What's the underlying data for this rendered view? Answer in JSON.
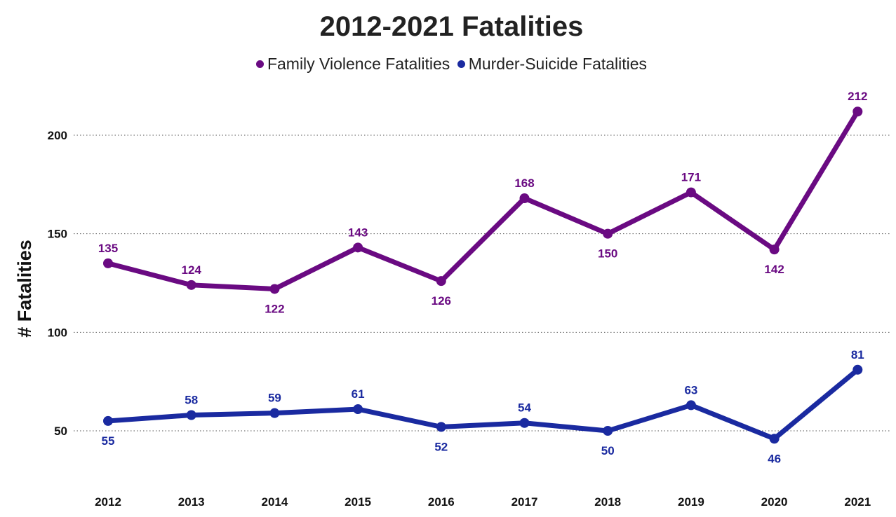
{
  "chart_data": {
    "type": "line",
    "title": "2012-2021 Fatalities",
    "xlabel": "",
    "ylabel": "# Fatalities",
    "x": [
      "2012",
      "2013",
      "2014",
      "2015",
      "2016",
      "2017",
      "2018",
      "2019",
      "2020",
      "2021"
    ],
    "yticks": [
      "50",
      "100",
      "150",
      "200"
    ],
    "ylim": [
      30,
      225
    ],
    "grid": "horizontal dotted",
    "legend": "top-center",
    "series": [
      {
        "name": "Family Violence Fatalities",
        "color": "#6a0a82",
        "values": [
          135,
          124,
          122,
          143,
          126,
          168,
          150,
          171,
          142,
          212
        ],
        "labels": [
          "135",
          "124",
          "122",
          "143",
          "126",
          "168",
          "150",
          "171",
          "142",
          "212"
        ],
        "label_placement": [
          "above",
          "above",
          "below",
          "above",
          "below",
          "above",
          "below",
          "above",
          "below",
          "above"
        ]
      },
      {
        "name": "Murder-Suicide Fatalities",
        "color": "#1a2aa0",
        "values": [
          55,
          58,
          59,
          61,
          52,
          54,
          50,
          63,
          46,
          81
        ],
        "labels": [
          "55",
          "58",
          "59",
          "61",
          "52",
          "54",
          "50",
          "63",
          "46",
          "81"
        ],
        "label_placement": [
          "below",
          "above",
          "above",
          "above",
          "below",
          "above",
          "below",
          "above",
          "below",
          "above"
        ]
      }
    ]
  }
}
